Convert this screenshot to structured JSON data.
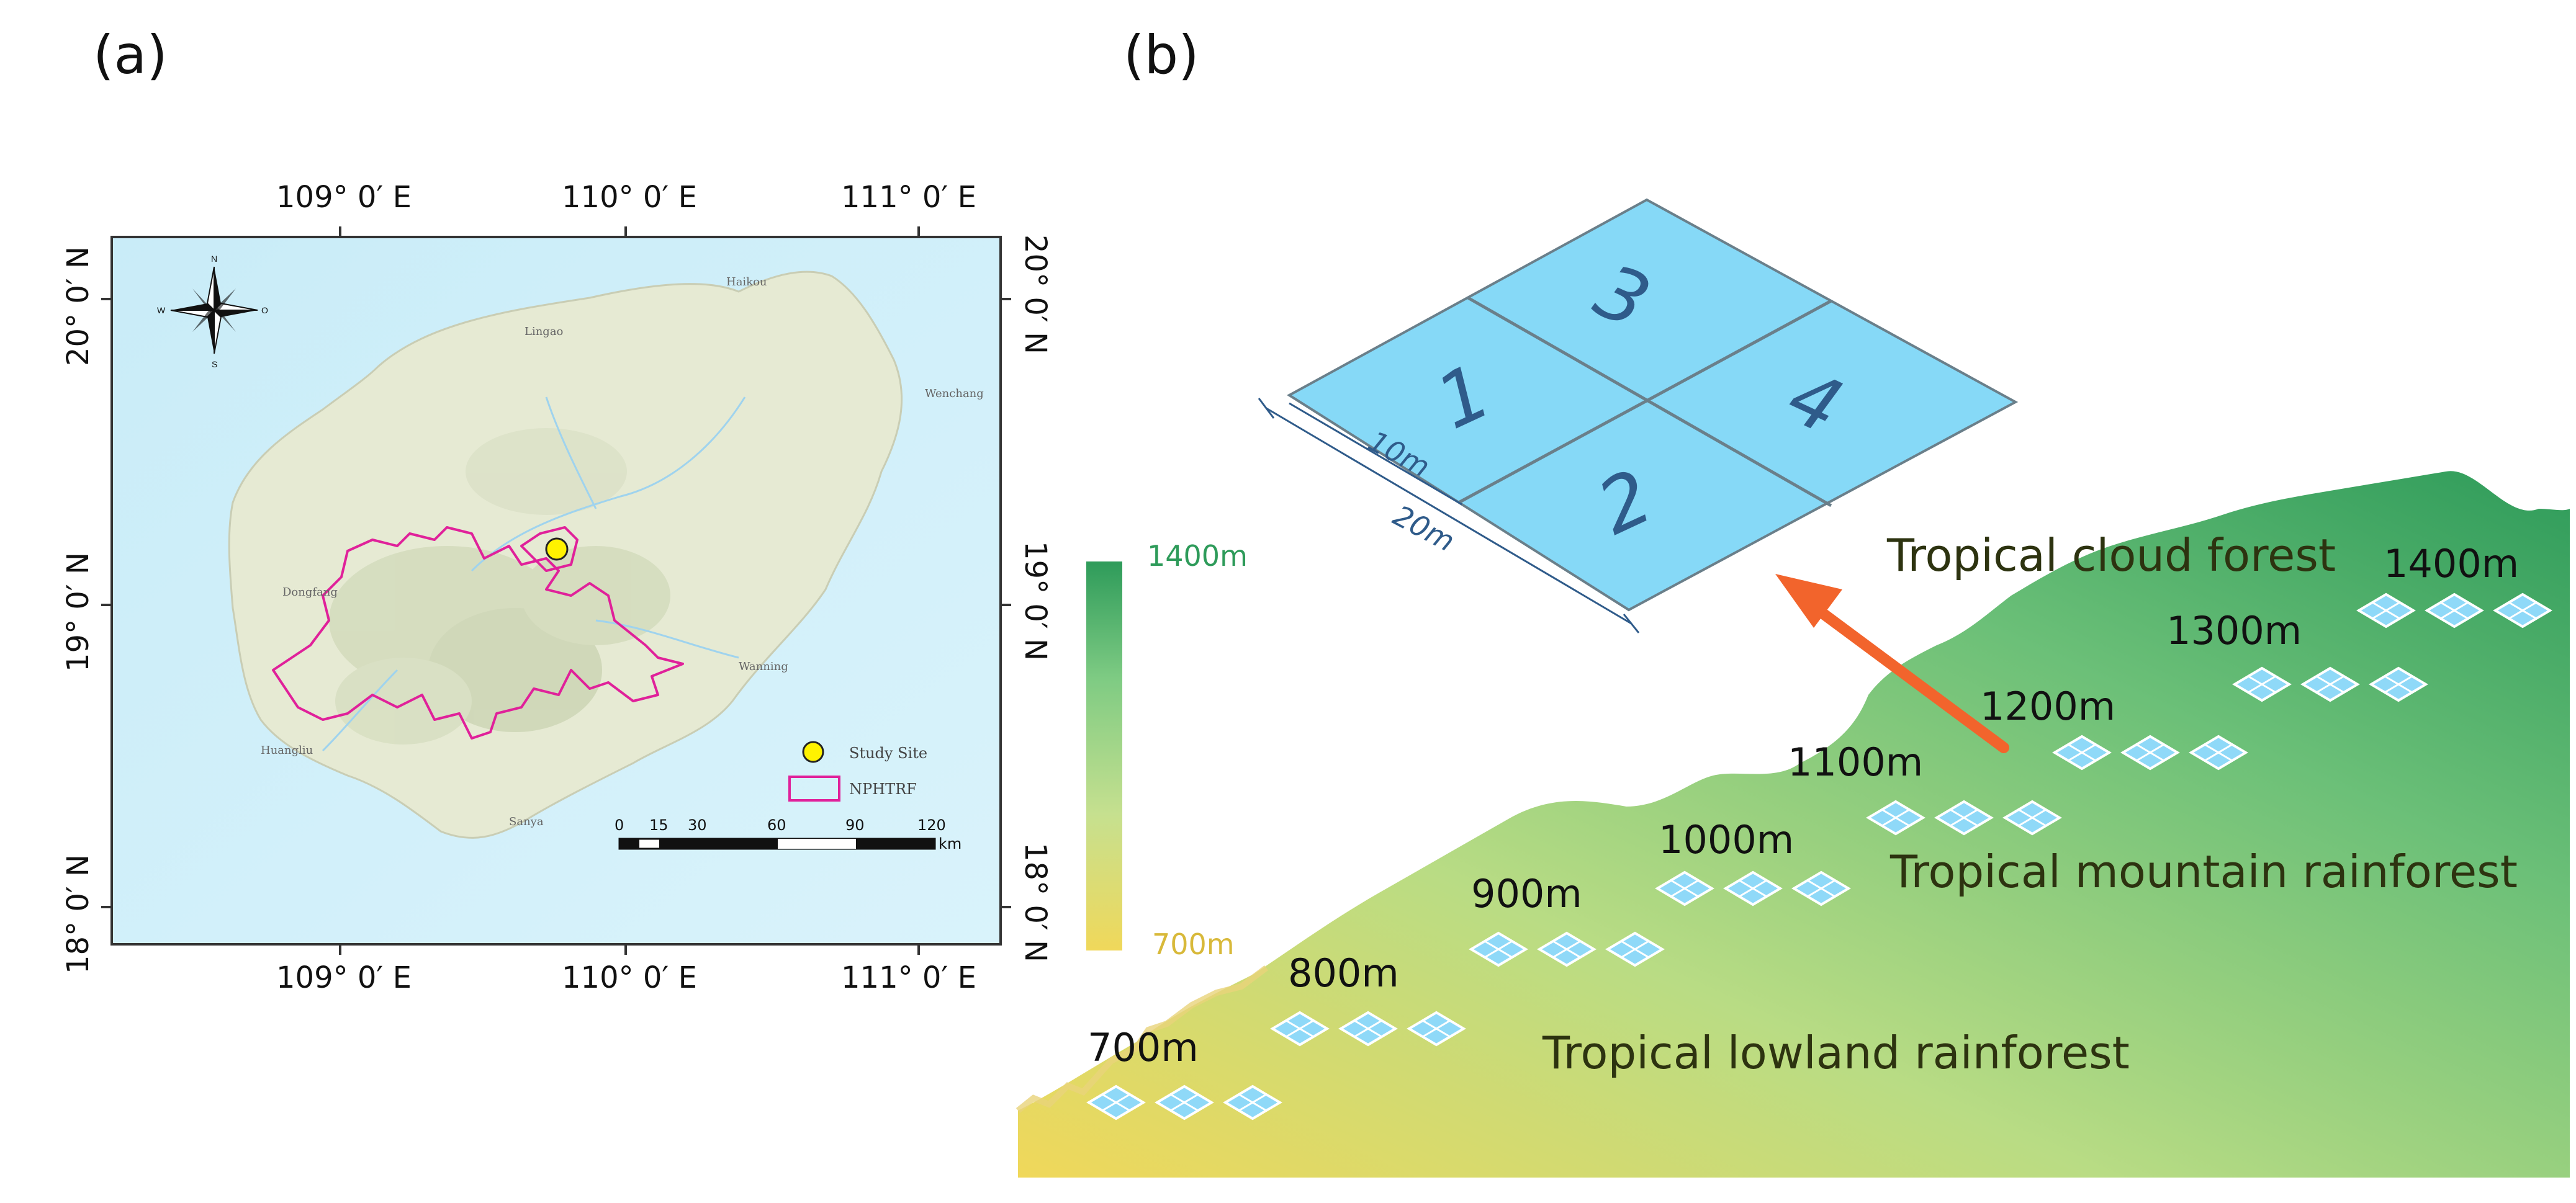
{
  "panel_a": {
    "label": "(a)",
    "lon_labels": [
      "109° 0′ E",
      "110° 0′ E",
      "111° 0′ E"
    ],
    "lat_labels": [
      "20° 0′ N",
      "19° 0′ N",
      "18° 0′ N"
    ],
    "compass": {
      "n": "N",
      "s": "S",
      "w": "W",
      "e": "O"
    },
    "place_labels": [
      "Haikou",
      "Lingao",
      "Wenchang",
      "Dongfang",
      "Wanning",
      "Huangliu",
      "Sanya"
    ],
    "legend": {
      "study_site": "Study Site",
      "boundary": "NPHTRF"
    },
    "scalebar": {
      "ticks": [
        "0",
        "15",
        "30",
        "60",
        "90",
        "120"
      ],
      "unit": "km"
    },
    "colors": {
      "sea": "#cdeefa",
      "land": "#e9edd8",
      "boundary": "#e0219a",
      "site": "#fff200"
    }
  },
  "panel_b": {
    "label": "(b)",
    "colorbar": {
      "top_label": "1400m",
      "bottom_label": "700m",
      "top_color": "#2e9b5a",
      "bottom_color": "#f0d85a"
    },
    "plot": {
      "numbers": [
        "1",
        "2",
        "3",
        "4"
      ],
      "dim_short": "10m",
      "dim_long": "20m"
    },
    "forest_types": [
      "Tropical cloud forest",
      "Tropical mountain rainforest",
      "Tropical lowland rainforest"
    ],
    "elevations": [
      "700m",
      "800m",
      "900m",
      "1000m",
      "1100m",
      "1200m",
      "1300m",
      "1400m"
    ],
    "arrow_color": "#f2642c"
  }
}
